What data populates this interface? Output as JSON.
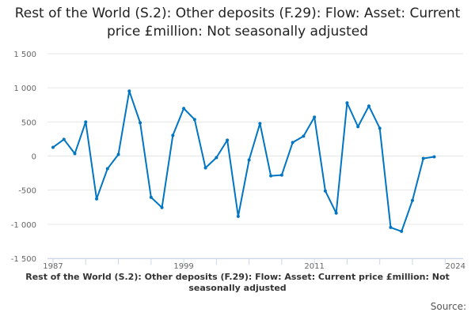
{
  "chart_data": {
    "type": "line",
    "title": "Rest of the World (S.2): Other deposits (F.29): Flow: Asset: Current price £million: Not seasonally adjusted",
    "xlabel": "",
    "ylabel": "",
    "ylim": [
      -1500,
      1500
    ],
    "xlim": [
      1987,
      2024
    ],
    "y_ticks": [
      {
        "v": 1500,
        "label": "1 500"
      },
      {
        "v": 1000,
        "label": "1 000"
      },
      {
        "v": 500,
        "label": "500"
      },
      {
        "v": 0,
        "label": "0"
      },
      {
        "v": -500,
        "label": "-500"
      },
      {
        "v": -1000,
        "label": "-1 000"
      },
      {
        "v": -1500,
        "label": "-1 500"
      }
    ],
    "x_ticks": [
      {
        "v": 1987,
        "label": "1987"
      },
      {
        "v": 1999,
        "label": "1999"
      },
      {
        "v": 2011,
        "label": "2011"
      },
      {
        "v": 2024,
        "label": "2024"
      }
    ],
    "grid": true,
    "legend_position": "bottom",
    "series": [
      {
        "name": "Rest of the World (S.2): Other deposits (F.29): Flow: Asset: Current price £million: Not seasonally adjusted",
        "color": "#0075c2",
        "x": [
          1987,
          1988,
          1989,
          1990,
          1991,
          1992,
          1993,
          1994,
          1995,
          1996,
          1997,
          1998,
          1999,
          2000,
          2001,
          2002,
          2003,
          2004,
          2005,
          2006,
          2007,
          2008,
          2009,
          2010,
          2011,
          2012,
          2013,
          2014,
          2015,
          2016,
          2017,
          2018,
          2019,
          2020,
          2021,
          2022
        ],
        "values": [
          128,
          244,
          35,
          500,
          -628,
          -186,
          23,
          953,
          488,
          -605,
          -756,
          302,
          698,
          535,
          -174,
          -23,
          233,
          -884,
          -58,
          477,
          -291,
          -279,
          198,
          291,
          570,
          -512,
          -837,
          779,
          430,
          733,
          407,
          -1047,
          -1105,
          -651,
          -35,
          -12
        ]
      }
    ]
  },
  "source_label": "Source:"
}
